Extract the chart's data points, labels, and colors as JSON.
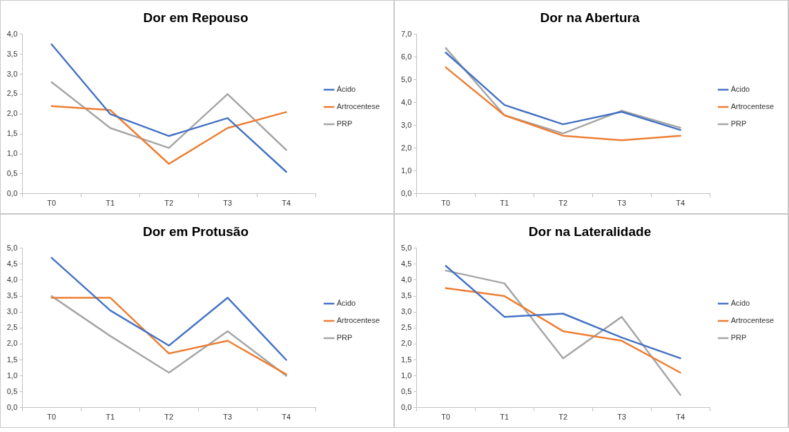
{
  "chart_data": [
    {
      "type": "line",
      "title": "Dor em Repouso",
      "categories": [
        "T0",
        "T1",
        "T2",
        "T3",
        "T4"
      ],
      "ylim": [
        0,
        4
      ],
      "yticks": [
        {
          "value": 0,
          "label": "0,0"
        },
        {
          "value": 0.5,
          "label": "0,5"
        },
        {
          "value": 1,
          "label": "1,0"
        },
        {
          "value": 1.5,
          "label": "1,5"
        },
        {
          "value": 2,
          "label": "2,0"
        },
        {
          "value": 2.5,
          "label": "2,5"
        },
        {
          "value": 3,
          "label": "3,0"
        },
        {
          "value": 3.5,
          "label": "3,5"
        },
        {
          "value": 4,
          "label": "4,0"
        }
      ],
      "grid": false,
      "legend": "right",
      "marker": "none",
      "line_style": "solid",
      "series": [
        {
          "name": "Ácido",
          "color": "#4472c4",
          "values": [
            3.75,
            2.0,
            1.45,
            1.9,
            0.55
          ]
        },
        {
          "name": "Artrocentese",
          "color": "#ed7d31",
          "values": [
            2.2,
            2.1,
            0.75,
            1.65,
            2.05
          ]
        },
        {
          "name": "PRP",
          "color": "#a5a5a5",
          "values": [
            2.8,
            1.65,
            1.15,
            2.5,
            1.1
          ]
        }
      ]
    },
    {
      "type": "line",
      "title": "Dor na Abertura",
      "categories": [
        "T0",
        "T1",
        "T2",
        "T3",
        "T4"
      ],
      "ylim": [
        0,
        7
      ],
      "yticks": [
        {
          "value": 0,
          "label": "0,0"
        },
        {
          "value": 1,
          "label": "1,0"
        },
        {
          "value": 2,
          "label": "2,0"
        },
        {
          "value": 3,
          "label": "3,0"
        },
        {
          "value": 4,
          "label": "4,0"
        },
        {
          "value": 5,
          "label": "5,0"
        },
        {
          "value": 6,
          "label": "6,0"
        },
        {
          "value": 7,
          "label": "7,0"
        }
      ],
      "grid": false,
      "legend": "right",
      "marker": "none",
      "line_style": "solid",
      "series": [
        {
          "name": "Ácido",
          "color": "#4472c4",
          "values": [
            6.2,
            3.9,
            3.05,
            3.6,
            2.8
          ]
        },
        {
          "name": "Artrocentese",
          "color": "#ed7d31",
          "values": [
            5.55,
            3.45,
            2.55,
            2.35,
            2.55
          ]
        },
        {
          "name": "PRP",
          "color": "#a5a5a5",
          "values": [
            6.4,
            3.45,
            2.65,
            3.65,
            2.9
          ]
        }
      ]
    },
    {
      "type": "line",
      "title": "Dor em Protusão",
      "categories": [
        "T0",
        "T1",
        "T2",
        "T3",
        "T4"
      ],
      "ylim": [
        0,
        5
      ],
      "yticks": [
        {
          "value": 0,
          "label": "0,0"
        },
        {
          "value": 0.5,
          "label": "0,5"
        },
        {
          "value": 1,
          "label": "1,0"
        },
        {
          "value": 1.5,
          "label": "1,5"
        },
        {
          "value": 2,
          "label": "2,0"
        },
        {
          "value": 2.5,
          "label": "2,5"
        },
        {
          "value": 3,
          "label": "3,0"
        },
        {
          "value": 3.5,
          "label": "3,5"
        },
        {
          "value": 4,
          "label": "4,0"
        },
        {
          "value": 4.5,
          "label": "4,5"
        },
        {
          "value": 5,
          "label": "5,0"
        }
      ],
      "grid": false,
      "legend": "right",
      "marker": "none",
      "line_style": "solid",
      "series": [
        {
          "name": "Ácido",
          "color": "#4472c4",
          "values": [
            4.7,
            3.05,
            1.95,
            3.45,
            1.5
          ]
        },
        {
          "name": "Artrocentese",
          "color": "#ed7d31",
          "values": [
            3.45,
            3.45,
            1.7,
            2.1,
            1.05
          ]
        },
        {
          "name": "PRP",
          "color": "#a5a5a5",
          "values": [
            3.5,
            2.25,
            1.1,
            2.4,
            1.0
          ]
        }
      ]
    },
    {
      "type": "line",
      "title": "Dor na Lateralidade",
      "categories": [
        "T0",
        "T1",
        "T2",
        "T3",
        "T4"
      ],
      "ylim": [
        0,
        5
      ],
      "yticks": [
        {
          "value": 0,
          "label": "0,0"
        },
        {
          "value": 0.5,
          "label": "0,5"
        },
        {
          "value": 1,
          "label": "1,0"
        },
        {
          "value": 1.5,
          "label": "1,5"
        },
        {
          "value": 2,
          "label": "2,0"
        },
        {
          "value": 2.5,
          "label": "2,5"
        },
        {
          "value": 3,
          "label": "3,0"
        },
        {
          "value": 3.5,
          "label": "3,5"
        },
        {
          "value": 4,
          "label": "4,0"
        },
        {
          "value": 4.5,
          "label": "4,5"
        },
        {
          "value": 5,
          "label": "5,0"
        }
      ],
      "grid": false,
      "legend": "right",
      "marker": "none",
      "line_style": "solid",
      "series": [
        {
          "name": "Ácido",
          "color": "#4472c4",
          "values": [
            4.45,
            2.85,
            2.95,
            2.2,
            1.55
          ]
        },
        {
          "name": "Artrocentese",
          "color": "#ed7d31",
          "values": [
            3.75,
            3.5,
            2.4,
            2.1,
            1.1
          ]
        },
        {
          "name": "PRP",
          "color": "#a5a5a5",
          "values": [
            4.3,
            3.9,
            1.55,
            2.85,
            0.4
          ]
        }
      ]
    }
  ]
}
